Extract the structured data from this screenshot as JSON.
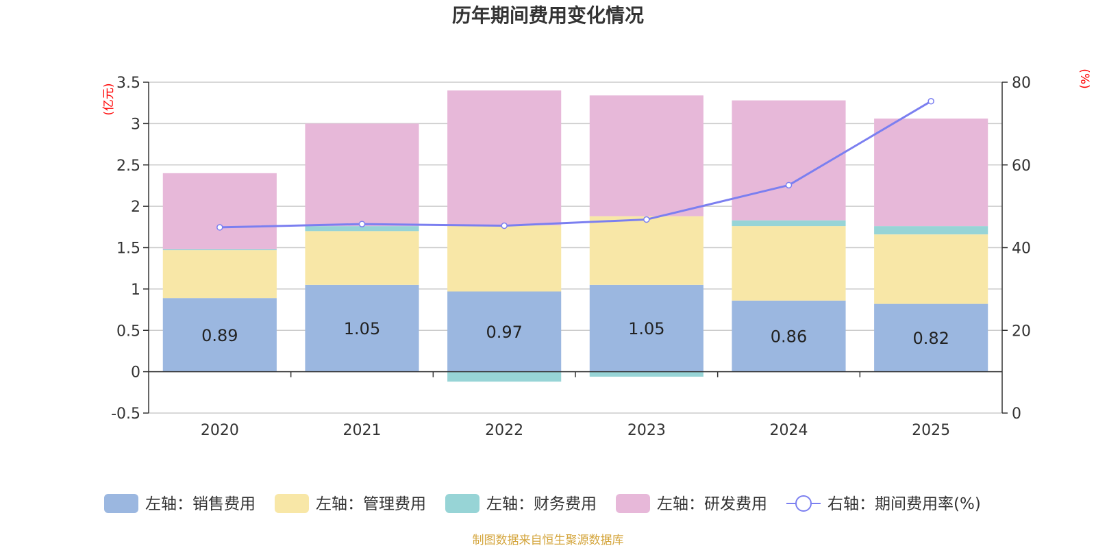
{
  "chart_data": {
    "type": "bar",
    "stacked": true,
    "title": "历年期间费用变化情况",
    "categories": [
      "2020",
      "2021",
      "2022",
      "2023",
      "2024",
      "2025"
    ],
    "left_axis": {
      "unit": "(亿元)",
      "ylim": [
        -0.5,
        3.5
      ],
      "ticks": [
        "3.5",
        "3",
        "2.5",
        "2",
        "1.5",
        "1",
        "0.5",
        "0",
        "-0.5"
      ]
    },
    "right_axis": {
      "unit": "(%)",
      "ylim": [
        0,
        80
      ],
      "ticks": [
        "80",
        "60",
        "40",
        "20",
        "0"
      ]
    },
    "series": [
      {
        "name": "左轴：销售费用",
        "color": "#9bb7e0",
        "values": [
          0.89,
          1.05,
          0.97,
          1.05,
          0.86,
          0.82
        ]
      },
      {
        "name": "左轴：管理费用",
        "color": "#f8e7a7",
        "values": [
          0.58,
          0.65,
          0.8,
          0.83,
          0.9,
          0.84
        ]
      },
      {
        "name": "左轴：财务费用",
        "color": "#97d4d6",
        "values": [
          0.01,
          0.06,
          -0.12,
          -0.06,
          0.07,
          0.1
        ]
      },
      {
        "name": "左轴：研发费用",
        "color": "#e7b8d9",
        "values": [
          0.92,
          1.24,
          1.63,
          1.46,
          1.45,
          1.3
        ]
      }
    ],
    "bar_labels": [
      "0.89",
      "1.05",
      "0.97",
      "1.05",
      "0.86",
      "0.82"
    ],
    "line": {
      "name": "右轴：期间费用率(%)",
      "color": "#7b7ff0",
      "values": [
        44.9,
        45.7,
        45.3,
        46.8,
        55.1,
        75.4
      ]
    },
    "legend_position": "bottom"
  },
  "source_text": "制图数据来自恒生聚源数据库"
}
